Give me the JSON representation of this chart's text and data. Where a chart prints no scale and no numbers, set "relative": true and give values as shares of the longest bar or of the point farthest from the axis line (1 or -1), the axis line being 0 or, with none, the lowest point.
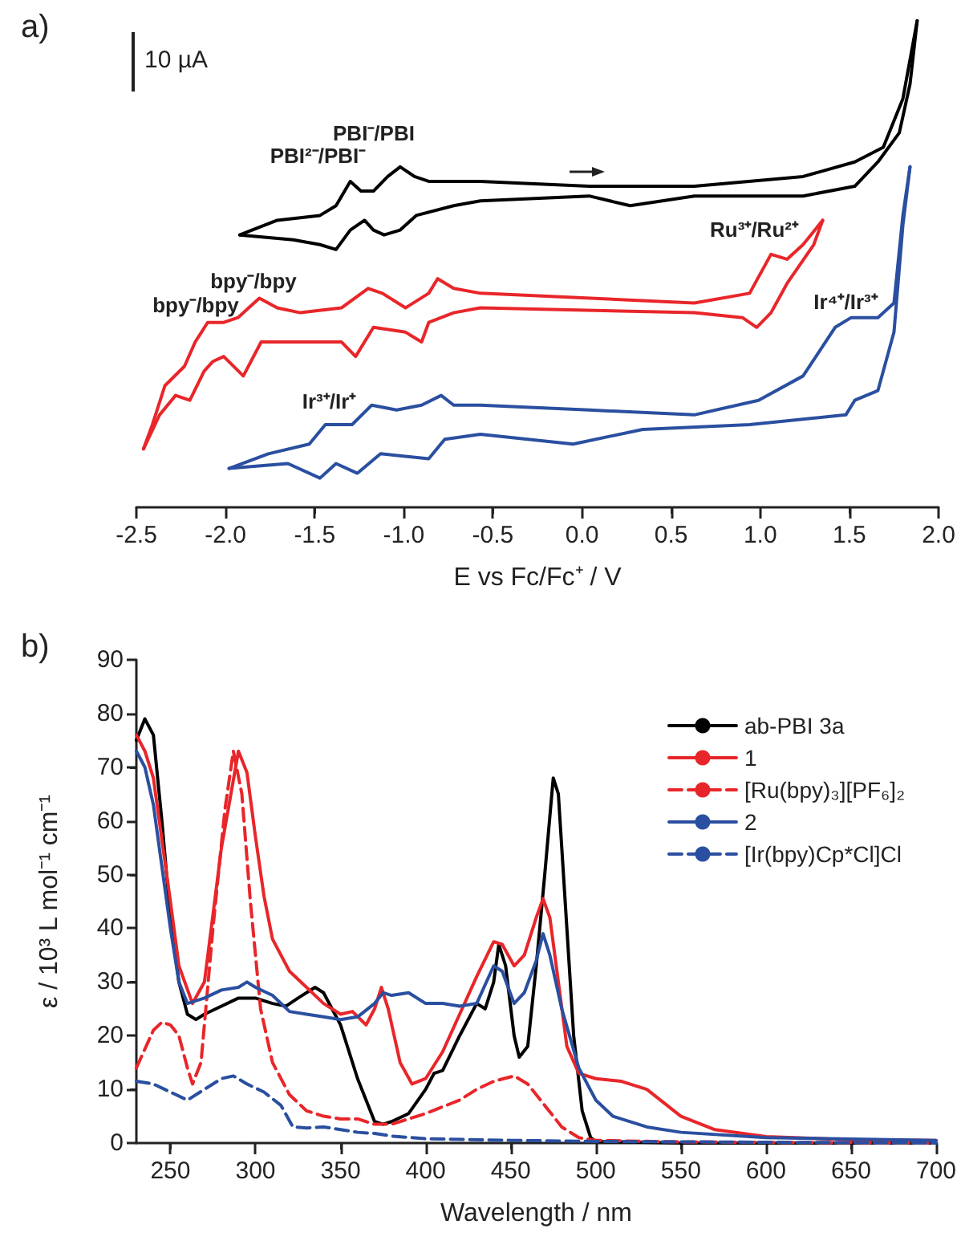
{
  "chart_data": [
    {
      "type": "line",
      "title": "a)",
      "xlabel": "E vs Fc/Fc⁺ / V",
      "relative": true,
      "marker": "none",
      "legend": false,
      "grid": false,
      "xlim": [
        -2.5,
        2.0
      ],
      "xticks": [
        -2.5,
        {
          "value": -2,
          "label": "-2.0"
        },
        -1.5,
        {
          "value": -1,
          "label": "-1.0"
        },
        -0.5,
        {
          "value": 0,
          "label": "0.0"
        },
        0.5,
        {
          "value": 1,
          "label": "1.0"
        },
        1.5,
        {
          "value": 2,
          "label": "2.0"
        }
      ],
      "annotations": [
        "10 µA",
        "PBI²⁻/PBI⁻",
        "PBI⁻/PBI",
        "bpy⁻/bpy",
        "bpy⁻/bpy",
        "Ru³⁺/Ru²⁺",
        "Ir⁴⁺/Ir³⁺",
        "Ir³⁺/Ir⁺"
      ],
      "series": [
        {
          "color": "#000000",
          "x": [
            -1.92,
            -1.71,
            -1.47,
            -1.38,
            -1.3,
            -1.24,
            -1.17,
            -1.09,
            -1.02,
            -0.94,
            -0.86,
            -0.57,
            0.04,
            0.63,
            1.24,
            1.53,
            1.69,
            1.8,
            1.88
          ],
          "values": [
            0.56,
            0.59,
            0.6,
            0.62,
            0.67,
            0.65,
            0.65,
            0.68,
            0.7,
            0.68,
            0.67,
            0.67,
            0.66,
            0.66,
            0.68,
            0.71,
            0.74,
            0.84,
            1.0
          ]
        },
        {
          "color": "#000000",
          "x": [
            -1.92,
            -1.62,
            -1.47,
            -1.38,
            -1.3,
            -1.22,
            -1.17,
            -1.11,
            -1.02,
            -0.93,
            -0.72,
            -0.57,
            0.04,
            0.27,
            0.63,
            1.24,
            1.53,
            1.66,
            1.78,
            1.84,
            1.88
          ],
          "values": [
            0.56,
            0.55,
            0.54,
            0.53,
            0.57,
            0.59,
            0.57,
            0.56,
            0.57,
            0.6,
            0.62,
            0.63,
            0.64,
            0.62,
            0.64,
            0.64,
            0.66,
            0.71,
            0.77,
            0.87,
            1.0
          ]
        },
        {
          "color": "#e8262a",
          "x": [
            -2.46,
            -2.41,
            -2.34,
            -2.23,
            -2.17,
            -2.1,
            -2.01,
            -1.93,
            -1.87,
            -1.81,
            -1.71,
            -1.58,
            -1.35,
            -1.2,
            -1.12,
            -0.99,
            -0.86,
            -0.81,
            -0.72,
            -0.57,
            0.63,
            0.94,
            1.06,
            1.15,
            1.24,
            1.35
          ],
          "values": [
            0.12,
            0.17,
            0.25,
            0.29,
            0.34,
            0.38,
            0.38,
            0.39,
            0.41,
            0.43,
            0.41,
            0.4,
            0.41,
            0.45,
            0.44,
            0.41,
            0.44,
            0.47,
            0.45,
            0.44,
            0.42,
            0.44,
            0.52,
            0.51,
            0.54,
            0.59
          ]
        },
        {
          "color": "#e8262a",
          "x": [
            -2.46,
            -2.37,
            -2.28,
            -2.2,
            -2.12,
            -2.07,
            -2.01,
            -1.9,
            -1.8,
            -1.58,
            -1.35,
            -1.27,
            -1.17,
            -0.99,
            -0.9,
            -0.86,
            -0.72,
            -0.57,
            0.63,
            0.9,
            0.98,
            1.06,
            1.15,
            1.3,
            1.35
          ],
          "values": [
            0.12,
            0.19,
            0.23,
            0.22,
            0.28,
            0.3,
            0.31,
            0.27,
            0.34,
            0.34,
            0.34,
            0.31,
            0.37,
            0.36,
            0.34,
            0.38,
            0.4,
            0.41,
            0.4,
            0.39,
            0.37,
            0.4,
            0.46,
            0.54,
            0.59
          ]
        },
        {
          "color": "#2a4fa0",
          "x": [
            -1.98,
            -1.76,
            -1.53,
            -1.44,
            -1.38,
            -1.29,
            -1.18,
            -1.04,
            -0.9,
            -0.79,
            -0.72,
            -0.57,
            0.04,
            0.63,
            0.99,
            1.24,
            1.42,
            1.51,
            1.66,
            1.75,
            1.8,
            1.84
          ],
          "values": [
            0.08,
            0.11,
            0.13,
            0.17,
            0.17,
            0.17,
            0.21,
            0.2,
            0.21,
            0.23,
            0.21,
            0.21,
            0.2,
            0.19,
            0.22,
            0.27,
            0.37,
            0.39,
            0.39,
            0.42,
            0.6,
            0.7
          ]
        },
        {
          "color": "#2a4fa0",
          "x": [
            -1.98,
            -1.65,
            -1.47,
            -1.38,
            -1.26,
            -1.13,
            -0.86,
            -0.77,
            -0.57,
            -0.05,
            0.34,
            0.94,
            1.48,
            1.53,
            1.66,
            1.75,
            1.8,
            1.84
          ],
          "values": [
            0.08,
            0.09,
            0.06,
            0.09,
            0.07,
            0.11,
            0.1,
            0.14,
            0.15,
            0.13,
            0.16,
            0.17,
            0.19,
            0.22,
            0.24,
            0.36,
            0.58,
            0.7
          ]
        }
      ]
    },
    {
      "type": "line",
      "title": "b)",
      "xlabel": "Wavelength / nm",
      "ylabel": "ε / 10³ L mol⁻¹ cm⁻¹",
      "marker": "none",
      "legend": "top right",
      "grid": false,
      "xlim": [
        230,
        700
      ],
      "xticks": [
        250,
        300,
        350,
        400,
        450,
        500,
        550,
        600,
        650,
        700
      ],
      "ylim": [
        0,
        90
      ],
      "yticks": [
        0,
        10,
        20,
        30,
        40,
        50,
        60,
        70,
        80,
        90
      ],
      "series": [
        {
          "name": "ab-PBI 3a",
          "color": "#000000",
          "x": [
            230,
            235,
            240,
            245,
            250,
            255,
            260,
            265,
            270,
            280,
            290,
            300,
            310,
            318,
            325,
            335,
            340,
            350,
            360,
            370,
            375,
            380,
            390,
            400,
            405,
            410,
            420,
            430,
            435,
            440,
            443,
            447,
            452,
            455,
            460,
            465,
            470,
            475,
            478,
            482,
            487,
            492,
            497,
            500,
            550,
            700
          ],
          "values": [
            75,
            79,
            76,
            60,
            42,
            30,
            24,
            23,
            24,
            25.5,
            27,
            27,
            26,
            25.5,
            27,
            29,
            28,
            22,
            12,
            4,
            3.5,
            4,
            5.5,
            10,
            13,
            13.5,
            20,
            26,
            25,
            30,
            37,
            33,
            20,
            16,
            18,
            33,
            50,
            68,
            65,
            45,
            20,
            6,
            1,
            0.3,
            0,
            0
          ]
        },
        {
          "name": "1",
          "color": "#e8262a",
          "x": [
            230,
            235,
            240,
            250,
            255,
            263,
            270,
            280,
            290,
            295,
            300,
            305,
            310,
            320,
            330,
            340,
            350,
            357,
            365,
            370,
            374,
            378,
            385,
            392,
            400,
            410,
            420,
            430,
            440,
            445,
            452,
            458,
            465,
            469,
            473,
            478,
            483,
            490,
            500,
            515,
            530,
            550,
            570,
            600,
            650,
            700
          ],
          "values": [
            76,
            73,
            68,
            45,
            33,
            26,
            30,
            55,
            73,
            69,
            57,
            46,
            38,
            32,
            29,
            26,
            24,
            24.5,
            22,
            25,
            29,
            25,
            15,
            11,
            12,
            17,
            24,
            31,
            37.5,
            37,
            33,
            35,
            42,
            45.5,
            42,
            30,
            18,
            13,
            12,
            11.5,
            10,
            5,
            2.5,
            1.2,
            0.6,
            0.5
          ]
        },
        {
          "name": "[Ru(bpy)₃][PF₆]₂",
          "color": "#e8262a",
          "line_style": "dashed",
          "x": [
            230,
            240,
            245,
            250,
            255,
            260,
            263,
            268,
            275,
            282,
            287,
            292,
            297,
            303,
            310,
            320,
            330,
            340,
            350,
            360,
            370,
            380,
            390,
            400,
            420,
            430,
            440,
            452,
            460,
            470,
            480,
            490,
            500,
            550,
            700
          ],
          "values": [
            14,
            21,
            22.5,
            22,
            20,
            14,
            11,
            15,
            40,
            62,
            73,
            65,
            45,
            25,
            15,
            9,
            6,
            5,
            4.5,
            4.5,
            3.5,
            3.5,
            4.5,
            5.5,
            8,
            10,
            11.5,
            12.5,
            11,
            7,
            3,
            1,
            0.5,
            0.2,
            0
          ]
        },
        {
          "name": "2",
          "color": "#2a4fa0",
          "x": [
            230,
            235,
            240,
            250,
            255,
            260,
            270,
            280,
            290,
            295,
            300,
            310,
            320,
            330,
            340,
            350,
            360,
            370,
            375,
            380,
            390,
            400,
            410,
            420,
            430,
            440,
            445,
            452,
            458,
            465,
            469,
            473,
            480,
            490,
            500,
            510,
            530,
            550,
            600,
            700
          ],
          "values": [
            73,
            70,
            63,
            40,
            30,
            26,
            27,
            28.5,
            29,
            30,
            29,
            27.5,
            24.5,
            24,
            23.5,
            23,
            23.5,
            26,
            28,
            27.5,
            28,
            26,
            26,
            25.5,
            26,
            33,
            32,
            26,
            28,
            34,
            39,
            35,
            25,
            14,
            8,
            5,
            3,
            2,
            1,
            0.5
          ]
        },
        {
          "name": "[Ir(bpy)Cp*Cl]Cl",
          "color": "#2a4fa0",
          "line_style": "dashed",
          "x": [
            230,
            240,
            250,
            260,
            270,
            280,
            287,
            295,
            305,
            315,
            322,
            330,
            340,
            350,
            360,
            370,
            380,
            400,
            450,
            500,
            700
          ],
          "values": [
            11.5,
            11,
            9.5,
            8,
            10,
            12,
            12.5,
            11,
            9.5,
            7,
            3,
            2.8,
            3,
            2.5,
            2,
            1.8,
            1.3,
            0.8,
            0.5,
            0.3,
            0
          ]
        }
      ]
    }
  ]
}
